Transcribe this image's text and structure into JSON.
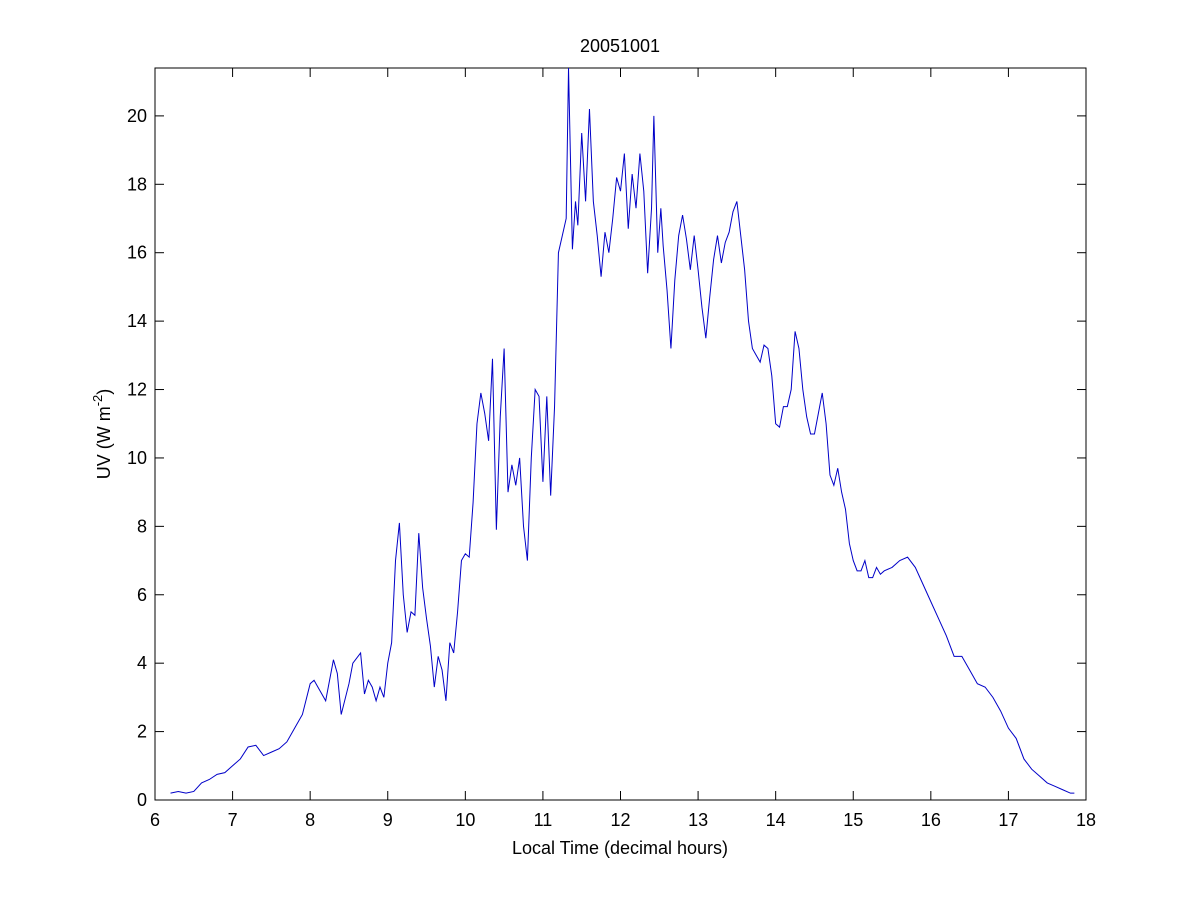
{
  "chart_data": {
    "type": "line",
    "title": "20051001",
    "xlabel": "Local Time (decimal hours)",
    "ylabel": {
      "text": "UV (W m",
      "superscript": "-2",
      "close": ")"
    },
    "xlim": [
      6,
      18
    ],
    "xticks": [
      6,
      7,
      8,
      9,
      10,
      11,
      12,
      13,
      14,
      15,
      16,
      17,
      18
    ],
    "ylim": [
      0,
      21.4
    ],
    "yticks": [
      0,
      2,
      4,
      6,
      8,
      10,
      12,
      14,
      16,
      18,
      20
    ],
    "grid": false,
    "series": [
      {
        "color": "#0000c8",
        "x": [
          6.2,
          6.3,
          6.4,
          6.5,
          6.6,
          6.7,
          6.8,
          6.9,
          7.0,
          7.1,
          7.2,
          7.3,
          7.4,
          7.5,
          7.6,
          7.7,
          7.8,
          7.9,
          8.0,
          8.05,
          8.1,
          8.2,
          8.3,
          8.35,
          8.4,
          8.5,
          8.55,
          8.65,
          8.7,
          8.75,
          8.8,
          8.85,
          8.9,
          8.95,
          9.0,
          9.05,
          9.1,
          9.15,
          9.2,
          9.25,
          9.3,
          9.35,
          9.4,
          9.45,
          9.5,
          9.55,
          9.6,
          9.65,
          9.7,
          9.75,
          9.8,
          9.85,
          9.9,
          9.95,
          10.0,
          10.05,
          10.1,
          10.15,
          10.2,
          10.25,
          10.3,
          10.35,
          10.4,
          10.45,
          10.5,
          10.55,
          10.6,
          10.65,
          10.7,
          10.75,
          10.8,
          10.85,
          10.9,
          10.95,
          11.0,
          11.05,
          11.1,
          11.15,
          11.2,
          11.25,
          11.3,
          11.33,
          11.38,
          11.42,
          11.45,
          11.5,
          11.55,
          11.6,
          11.65,
          11.7,
          11.75,
          11.8,
          11.85,
          11.9,
          11.95,
          12.0,
          12.05,
          12.1,
          12.15,
          12.2,
          12.25,
          12.3,
          12.35,
          12.4,
          12.43,
          12.48,
          12.52,
          12.55,
          12.6,
          12.65,
          12.7,
          12.75,
          12.8,
          12.85,
          12.9,
          12.95,
          13.0,
          13.05,
          13.1,
          13.15,
          13.2,
          13.25,
          13.3,
          13.35,
          13.4,
          13.45,
          13.5,
          13.55,
          13.6,
          13.65,
          13.7,
          13.75,
          13.8,
          13.85,
          13.9,
          13.95,
          14.0,
          14.05,
          14.1,
          14.15,
          14.2,
          14.25,
          14.3,
          14.35,
          14.4,
          14.45,
          14.5,
          14.55,
          14.6,
          14.65,
          14.7,
          14.75,
          14.8,
          14.85,
          14.9,
          14.95,
          15.0,
          15.05,
          15.1,
          15.15,
          15.2,
          15.25,
          15.3,
          15.35,
          15.4,
          15.5,
          15.6,
          15.7,
          15.8,
          15.9,
          16.0,
          16.1,
          16.2,
          16.3,
          16.4,
          16.5,
          16.6,
          16.7,
          16.8,
          16.9,
          17.0,
          17.1,
          17.2,
          17.3,
          17.4,
          17.5,
          17.6,
          17.7,
          17.8,
          17.85
        ],
        "values": [
          0.2,
          0.25,
          0.2,
          0.25,
          0.5,
          0.6,
          0.75,
          0.8,
          1.0,
          1.2,
          1.55,
          1.6,
          1.3,
          1.4,
          1.5,
          1.7,
          2.1,
          2.5,
          3.4,
          3.5,
          3.3,
          2.9,
          4.1,
          3.7,
          2.5,
          3.4,
          4.0,
          4.3,
          3.1,
          3.5,
          3.3,
          2.9,
          3.3,
          3.0,
          4.0,
          4.6,
          7.0,
          8.1,
          6.0,
          4.9,
          5.5,
          5.4,
          7.8,
          6.2,
          5.3,
          4.5,
          3.3,
          4.2,
          3.8,
          2.9,
          4.6,
          4.3,
          5.5,
          7.0,
          7.2,
          7.1,
          8.7,
          11.0,
          11.9,
          11.3,
          10.5,
          12.9,
          7.9,
          11.2,
          13.2,
          9.0,
          9.8,
          9.2,
          10.0,
          8.0,
          7.0,
          10.0,
          12.0,
          11.8,
          9.3,
          11.8,
          8.9,
          11.5,
          16.0,
          16.5,
          17.0,
          21.4,
          16.1,
          17.5,
          16.8,
          19.5,
          17.5,
          20.2,
          17.5,
          16.5,
          15.3,
          16.6,
          16.0,
          17.0,
          18.2,
          17.8,
          18.9,
          16.7,
          18.3,
          17.3,
          18.9,
          17.8,
          15.4,
          17.3,
          20.0,
          16.0,
          17.3,
          16.2,
          14.9,
          13.2,
          15.2,
          16.5,
          17.1,
          16.4,
          15.5,
          16.5,
          15.5,
          14.4,
          13.5,
          14.7,
          15.8,
          16.5,
          15.7,
          16.3,
          16.6,
          17.2,
          17.5,
          16.5,
          15.5,
          14.0,
          13.2,
          13.0,
          12.8,
          13.3,
          13.2,
          12.4,
          11.0,
          10.9,
          11.5,
          11.5,
          12.0,
          13.7,
          13.2,
          12.0,
          11.2,
          10.7,
          10.7,
          11.3,
          11.9,
          11.0,
          9.5,
          9.2,
          9.7,
          9.0,
          8.5,
          7.5,
          7.0,
          6.7,
          6.7,
          7.0,
          6.5,
          6.5,
          6.8,
          6.6,
          6.7,
          6.8,
          7.0,
          7.1,
          6.8,
          6.3,
          5.8,
          5.3,
          4.8,
          4.2,
          4.2,
          3.8,
          3.4,
          3.3,
          3.0,
          2.6,
          2.1,
          1.8,
          1.2,
          0.9,
          0.7,
          0.5,
          0.4,
          0.3,
          0.2,
          0.2
        ]
      }
    ]
  }
}
